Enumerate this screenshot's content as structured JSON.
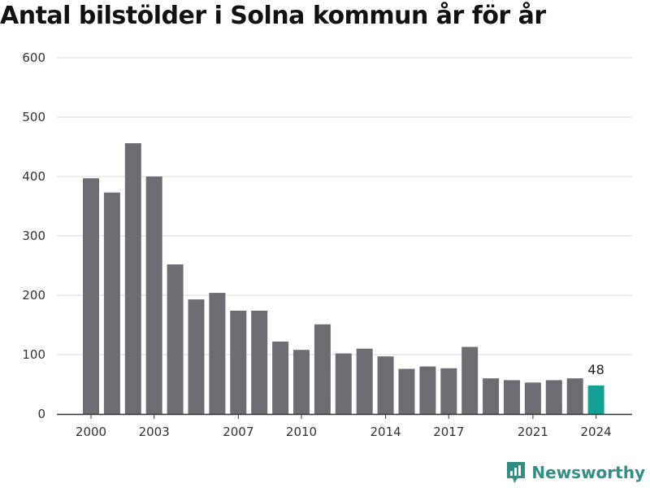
{
  "title": "Antal bilstölder i Solna kommun år för år",
  "brand": {
    "name": "Newsworthy",
    "icon": "newsworthy-logo-icon"
  },
  "colors": {
    "bar": "#6d6c72",
    "highlight": "#13a196",
    "grid": "#d9d9d9",
    "axis": "#333333",
    "brand": "#2f8f87"
  },
  "chart_data": {
    "type": "bar",
    "title": "Antal bilstölder i Solna kommun år för år",
    "xlabel": "",
    "ylabel": "",
    "categories": [
      "2000",
      "2001",
      "2002",
      "2003",
      "2004",
      "2005",
      "2006",
      "2007",
      "2008",
      "2009",
      "2010",
      "2011",
      "2012",
      "2013",
      "2014",
      "2015",
      "2016",
      "2017",
      "2018",
      "2019",
      "2020",
      "2021",
      "2022",
      "2023",
      "2024"
    ],
    "values": [
      397,
      373,
      456,
      400,
      252,
      193,
      204,
      174,
      174,
      122,
      108,
      151,
      102,
      110,
      97,
      76,
      80,
      77,
      113,
      60,
      57,
      53,
      57,
      60,
      48
    ],
    "x_tick_labels": [
      "2000",
      "2003",
      "2007",
      "2010",
      "2014",
      "2017",
      "2021",
      "2024"
    ],
    "y_ticks": [
      0,
      100,
      200,
      300,
      400,
      500,
      600
    ],
    "ylim": [
      0,
      600
    ],
    "grid": true,
    "highlight": {
      "category": "2024",
      "label": "48"
    }
  }
}
